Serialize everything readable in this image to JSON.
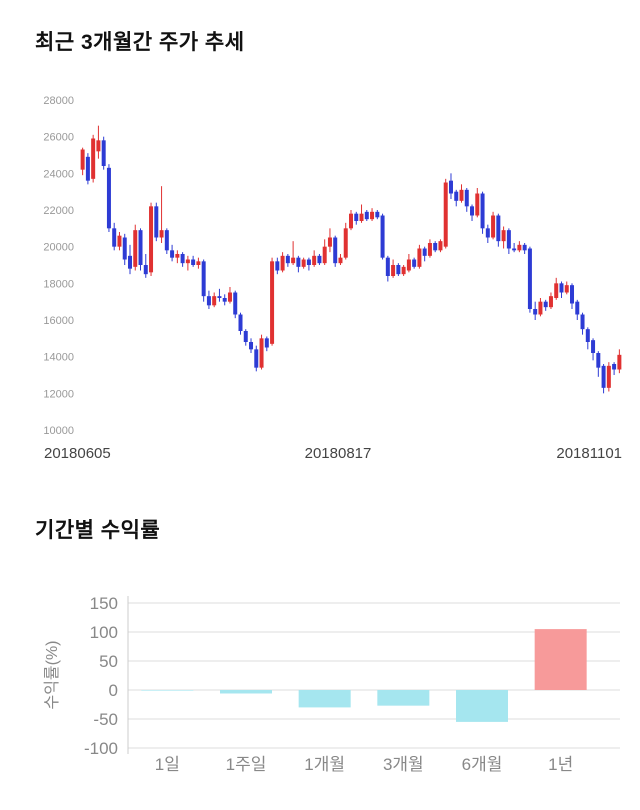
{
  "chart_data": [
    {
      "type": "candlestick",
      "title": "최근 3개월간 주가 추세",
      "ylim": [
        10000,
        28000
      ],
      "y_ticks": [
        10000,
        12000,
        14000,
        16000,
        18000,
        20000,
        22000,
        24000,
        26000,
        28000
      ],
      "x_tick_labels": [
        "20180605",
        "20180817",
        "20181101"
      ],
      "colors": {
        "up": "#e03131",
        "down": "#2d3bd4",
        "tick_label": "#999999",
        "x_label": "#444444"
      },
      "candles": [
        [
          24200,
          25400,
          23900,
          25300
        ],
        [
          24900,
          25100,
          23400,
          23600
        ],
        [
          23700,
          26100,
          23500,
          25900
        ],
        [
          25200,
          26600,
          24800,
          25800
        ],
        [
          25800,
          26000,
          24200,
          24400
        ],
        [
          24300,
          24500,
          20800,
          21000
        ],
        [
          21000,
          21300,
          19800,
          20000
        ],
        [
          20000,
          20800,
          19800,
          20600
        ],
        [
          20500,
          20700,
          19000,
          19300
        ],
        [
          19500,
          20100,
          18500,
          18800
        ],
        [
          18900,
          21200,
          18700,
          20900
        ],
        [
          20900,
          21000,
          18700,
          19000
        ],
        [
          19000,
          19600,
          18300,
          18500
        ],
        [
          18600,
          22400,
          18400,
          22200
        ],
        [
          22200,
          22400,
          20300,
          20500
        ],
        [
          20500,
          23300,
          20200,
          20900
        ],
        [
          20900,
          21000,
          19600,
          19800
        ],
        [
          19800,
          20100,
          19200,
          19400
        ],
        [
          19400,
          19800,
          19100,
          19600
        ],
        [
          19600,
          19700,
          18900,
          19100
        ],
        [
          19100,
          19500,
          18700,
          19300
        ],
        [
          19300,
          19500,
          18900,
          19000
        ],
        [
          19000,
          19400,
          18800,
          19200
        ],
        [
          19200,
          19300,
          17000,
          17300
        ],
        [
          17300,
          17600,
          16600,
          16800
        ],
        [
          16800,
          17500,
          16700,
          17300
        ],
        [
          17300,
          17700,
          17000,
          17200
        ],
        [
          17200,
          17400,
          16800,
          17000
        ],
        [
          17000,
          17800,
          16900,
          17500
        ],
        [
          17500,
          17600,
          16100,
          16300
        ],
        [
          16300,
          16400,
          15200,
          15400
        ],
        [
          15400,
          15500,
          14600,
          14800
        ],
        [
          14800,
          15000,
          14200,
          14400
        ],
        [
          14400,
          14600,
          13200,
          13400
        ],
        [
          13400,
          15200,
          13300,
          15000
        ],
        [
          15000,
          15100,
          14300,
          14500
        ],
        [
          14700,
          19400,
          14600,
          19200
        ],
        [
          19200,
          19400,
          18500,
          18700
        ],
        [
          18700,
          19700,
          18600,
          19500
        ],
        [
          19500,
          19600,
          18900,
          19100
        ],
        [
          19100,
          20300,
          19000,
          19400
        ],
        [
          19400,
          19500,
          18600,
          18900
        ],
        [
          18900,
          19400,
          18800,
          19300
        ],
        [
          19300,
          19400,
          18700,
          19000
        ],
        [
          19000,
          19800,
          18900,
          19500
        ],
        [
          19500,
          19600,
          19000,
          19100
        ],
        [
          19100,
          20400,
          19000,
          20000
        ],
        [
          20000,
          21000,
          19700,
          20500
        ],
        [
          20500,
          20600,
          18900,
          19100
        ],
        [
          19100,
          19600,
          19000,
          19400
        ],
        [
          19400,
          21300,
          19300,
          21000
        ],
        [
          21000,
          22000,
          20900,
          21800
        ],
        [
          21800,
          21900,
          21200,
          21400
        ],
        [
          21400,
          22300,
          21300,
          21800
        ],
        [
          21900,
          22000,
          21400,
          21500
        ],
        [
          21500,
          22100,
          21400,
          21900
        ],
        [
          21900,
          22000,
          21500,
          21600
        ],
        [
          21700,
          21800,
          19300,
          19400
        ],
        [
          19400,
          19500,
          18100,
          18400
        ],
        [
          18400,
          19300,
          18300,
          19000
        ],
        [
          19000,
          19100,
          18400,
          18500
        ],
        [
          18500,
          19000,
          18400,
          18900
        ],
        [
          18700,
          19600,
          18600,
          19300
        ],
        [
          19300,
          19400,
          18800,
          18900
        ],
        [
          18900,
          20100,
          18800,
          19900
        ],
        [
          19900,
          20000,
          19200,
          19500
        ],
        [
          19500,
          20400,
          19400,
          20200
        ],
        [
          20200,
          20300,
          19700,
          19800
        ],
        [
          19800,
          20400,
          19700,
          20300
        ],
        [
          20000,
          23700,
          19900,
          23500
        ],
        [
          23600,
          24000,
          22600,
          22900
        ],
        [
          23000,
          23100,
          22200,
          22500
        ],
        [
          22500,
          23400,
          22400,
          23100
        ],
        [
          23100,
          23200,
          21900,
          22200
        ],
        [
          22200,
          22300,
          21400,
          21700
        ],
        [
          21700,
          23200,
          21600,
          22900
        ],
        [
          22900,
          23000,
          20700,
          21000
        ],
        [
          21000,
          21200,
          20200,
          20500
        ],
        [
          20500,
          21900,
          20400,
          21700
        ],
        [
          21700,
          21800,
          20000,
          20300
        ],
        [
          20300,
          21100,
          19900,
          20900
        ],
        [
          20900,
          21000,
          19600,
          19900
        ],
        [
          19900,
          20200,
          19700,
          19800
        ],
        [
          19800,
          20300,
          19700,
          20100
        ],
        [
          20100,
          20200,
          19600,
          19800
        ],
        [
          19900,
          20000,
          16400,
          16600
        ],
        [
          16600,
          17000,
          16000,
          16300
        ],
        [
          16300,
          17200,
          16200,
          17000
        ],
        [
          17000,
          17100,
          16500,
          16700
        ],
        [
          16700,
          17500,
          16600,
          17300
        ],
        [
          17200,
          18300,
          17100,
          18000
        ],
        [
          18000,
          18100,
          17200,
          17500
        ],
        [
          17500,
          18100,
          17400,
          17900
        ],
        [
          17900,
          18000,
          16600,
          16900
        ],
        [
          17000,
          17100,
          16000,
          16300
        ],
        [
          16300,
          16400,
          15200,
          15500
        ],
        [
          15500,
          15600,
          14400,
          14800
        ],
        [
          14900,
          15000,
          13800,
          14200
        ],
        [
          14200,
          14300,
          12900,
          13400
        ],
        [
          13500,
          13600,
          12000,
          12300
        ],
        [
          12300,
          13700,
          12100,
          13500
        ],
        [
          13600,
          13700,
          13000,
          13300
        ],
        [
          13300,
          14400,
          13100,
          14100
        ]
      ]
    },
    {
      "type": "bar",
      "title": "기간별 수익률",
      "ylabel": "수익률(%)",
      "categories": [
        "1일",
        "1주일",
        "1개월",
        "3개월",
        "6개월",
        "1년"
      ],
      "values": [
        -1,
        -6,
        -30,
        -27,
        -55,
        105
      ],
      "ylim": [
        -100,
        150
      ],
      "y_ticks": [
        -100,
        -50,
        0,
        50,
        100,
        150
      ],
      "grid": true,
      "legend": "none",
      "colors": {
        "positive": "#f79a9a",
        "negative": "#a5e6ef",
        "grid": "#dddddd",
        "axis": "#cccccc",
        "tick_label": "#888888"
      }
    }
  ]
}
